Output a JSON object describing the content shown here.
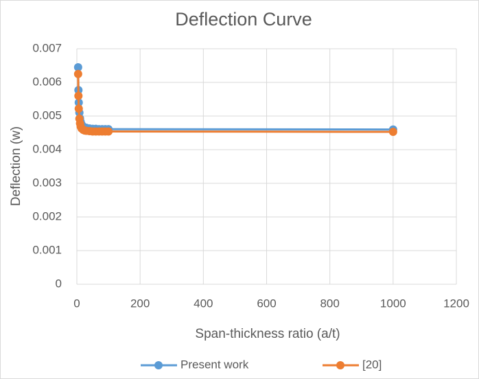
{
  "chart_data": {
    "type": "line",
    "title": "Deflection Curve",
    "x_label": "Span-thickness ratio (a/t)",
    "y_label": "Deflection (w)",
    "x": [
      4,
      5,
      6,
      8,
      10,
      12,
      15,
      20,
      25,
      30,
      40,
      50,
      60,
      70,
      80,
      90,
      100,
      1000
    ],
    "series": [
      {
        "name": "Present work",
        "color": "#5b9bd5",
        "values": [
          0.00645,
          0.00577,
          0.0054,
          0.0051,
          0.00493,
          0.00483,
          0.00475,
          0.00469,
          0.00466,
          0.00465,
          0.00463,
          0.00462,
          0.00462,
          0.00461,
          0.00461,
          0.00461,
          0.00461,
          0.0046
        ]
      },
      {
        "name": "[20]",
        "color": "#ed7d31",
        "values": [
          0.00625,
          0.0056,
          0.00522,
          0.00492,
          0.00478,
          0.00469,
          0.00463,
          0.00459,
          0.00457,
          0.00456,
          0.00455,
          0.00454,
          0.00454,
          0.00454,
          0.00454,
          0.00454,
          0.00454,
          0.00453
        ]
      }
    ],
    "xlim": [
      0,
      1200
    ],
    "xticks": [
      0,
      200,
      400,
      600,
      800,
      1000,
      1200
    ],
    "ylim": [
      0,
      0.007
    ],
    "yticks": [
      0,
      0.001,
      0.002,
      0.003,
      0.004,
      0.005,
      0.006,
      0.007
    ],
    "grid": true,
    "legend": "bottom"
  }
}
